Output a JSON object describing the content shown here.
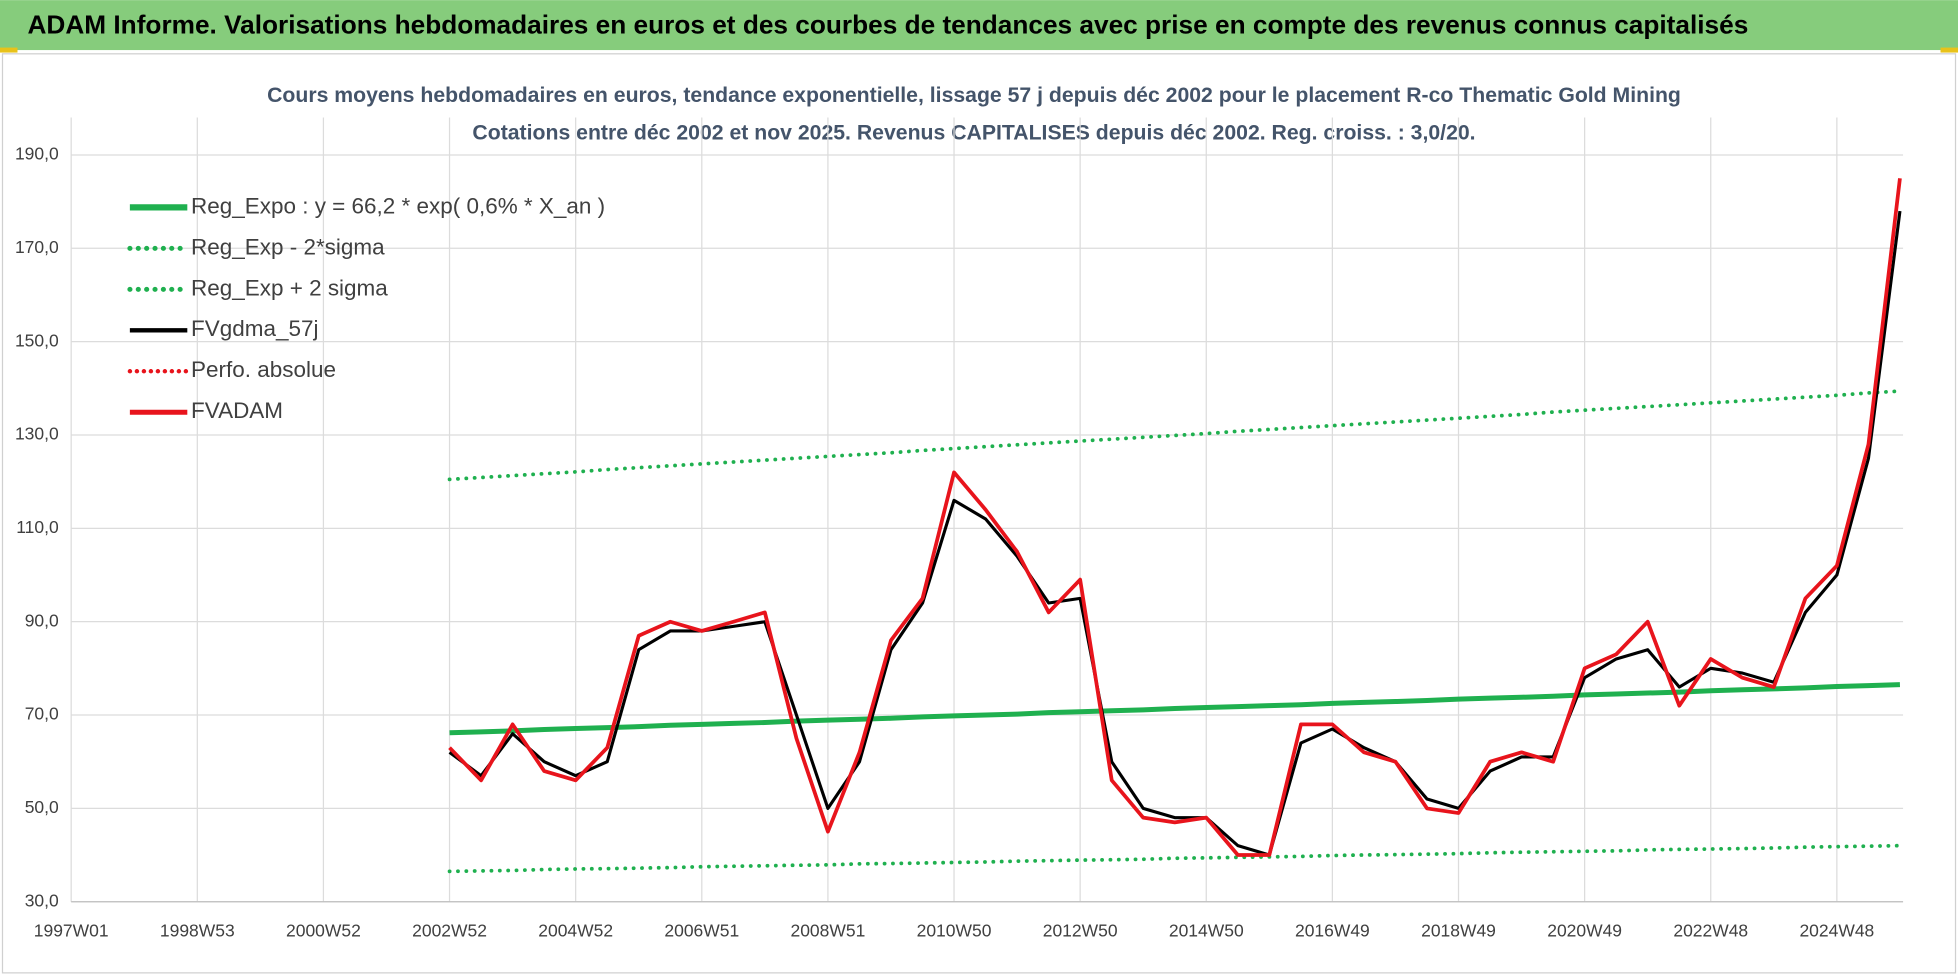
{
  "header": {
    "title": "ADAM Informe. Valorisations hebdomadaires en euros et des courbes de tendances avec prise en compte des revenus connus capitalisés"
  },
  "chart_data": {
    "type": "line",
    "title": "Cours moyens hebdomadaires en euros, tendance exponentielle, lissage 57 j depuis déc 2002 pour le placement R-co Thematic Gold Mining",
    "subtitle": "Cotations entre déc 2002 et nov 2025. Revenus CAPITALISES depuis déc 2002. Reg. croiss. : 3,0/20.",
    "categories": [
      "1997W01",
      null,
      null,
      null,
      "1998W53",
      null,
      null,
      null,
      "2000W52",
      null,
      null,
      null,
      "2002W52",
      null,
      null,
      null,
      "2004W52",
      null,
      null,
      null,
      "2006W51",
      null,
      null,
      null,
      "2008W51",
      null,
      null,
      null,
      "2010W50",
      null,
      null,
      null,
      "2012W50",
      null,
      null,
      null,
      "2014W50",
      null,
      null,
      null,
      "2016W49",
      null,
      null,
      null,
      "2018W49",
      null,
      null,
      null,
      "2020W49",
      null,
      null,
      null,
      "2022W48",
      null,
      null,
      null,
      "2024W48",
      null,
      null
    ],
    "ylim": [
      30,
      190
    ],
    "yticks": [
      {
        "value": 30,
        "label": "30,0"
      },
      {
        "value": 50,
        "label": "50,0"
      },
      {
        "value": 70,
        "label": "70,0"
      },
      {
        "value": 90,
        "label": "90,0"
      },
      {
        "value": 110,
        "label": "110,0"
      },
      {
        "value": 130,
        "label": "130,0"
      },
      {
        "value": 150,
        "label": "150,0"
      },
      {
        "value": 170,
        "label": "170,0"
      },
      {
        "value": 190,
        "label": "190,0"
      }
    ],
    "grid": true,
    "legend": "top-left",
    "series": [
      {
        "name": "Reg_Expo : y = 66,2 * exp( 0,6% *  X_an )",
        "color": "#1fb04f",
        "style": "solid",
        "width": 4,
        "values": [
          null,
          null,
          null,
          null,
          null,
          null,
          null,
          null,
          null,
          null,
          null,
          null,
          66.2,
          66.4,
          66.6,
          66.9,
          67.1,
          67.3,
          67.5,
          67.8,
          68.0,
          68.2,
          68.4,
          68.7,
          68.9,
          69.1,
          69.3,
          69.6,
          69.8,
          70.0,
          70.2,
          70.5,
          70.7,
          70.9,
          71.1,
          71.4,
          71.6,
          71.8,
          72.0,
          72.2,
          72.5,
          72.7,
          72.9,
          73.1,
          73.4,
          73.6,
          73.8,
          74.0,
          74.3,
          74.5,
          74.7,
          74.9,
          75.2,
          75.4,
          75.6,
          75.8,
          76.1,
          76.3,
          76.5
        ]
      },
      {
        "name": "Reg_Exp - 2*sigma",
        "color": "#1fb04f",
        "style": "dotted",
        "width": 3,
        "values": [
          null,
          null,
          null,
          null,
          null,
          null,
          null,
          null,
          null,
          null,
          null,
          null,
          36.5,
          36.6,
          36.7,
          36.9,
          37.0,
          37.1,
          37.2,
          37.3,
          37.5,
          37.6,
          37.7,
          37.8,
          37.9,
          38.1,
          38.2,
          38.3,
          38.4,
          38.5,
          38.7,
          38.8,
          38.9,
          39.0,
          39.1,
          39.3,
          39.4,
          39.5,
          39.6,
          39.7,
          39.9,
          40.0,
          40.1,
          40.2,
          40.3,
          40.5,
          40.6,
          40.7,
          40.8,
          40.9,
          41.1,
          41.2,
          41.3,
          41.4,
          41.5,
          41.7,
          41.8,
          41.9,
          42.0
        ]
      },
      {
        "name": "Reg_Exp + 2 sigma",
        "color": "#1fb04f",
        "style": "dotted",
        "width": 3,
        "values": [
          null,
          null,
          null,
          null,
          null,
          null,
          null,
          null,
          null,
          null,
          null,
          null,
          120.5,
          120.9,
          121.3,
          121.7,
          122.1,
          122.6,
          123.0,
          123.4,
          123.8,
          124.2,
          124.6,
          125.0,
          125.4,
          125.8,
          126.2,
          126.7,
          127.1,
          127.5,
          127.9,
          128.3,
          128.7,
          129.1,
          129.5,
          129.9,
          130.3,
          130.8,
          131.2,
          131.6,
          132.0,
          132.4,
          132.8,
          133.2,
          133.6,
          134.0,
          134.4,
          134.9,
          135.3,
          135.7,
          136.1,
          136.5,
          136.9,
          137.3,
          137.7,
          138.1,
          138.5,
          139.0,
          139.4
        ]
      },
      {
        "name": "FVgdma_57j",
        "color": "#000000",
        "style": "solid",
        "width": 2.5,
        "values": [
          null,
          null,
          null,
          null,
          null,
          null,
          null,
          null,
          null,
          null,
          null,
          null,
          62,
          57,
          66,
          60,
          57,
          60,
          84,
          88,
          88,
          89,
          90,
          70,
          50,
          60,
          84,
          94,
          116,
          112,
          104,
          94,
          95,
          60,
          50,
          48,
          48,
          42,
          40,
          64,
          67,
          63,
          60,
          52,
          50,
          58,
          61,
          61,
          78,
          82,
          84,
          76,
          80,
          79,
          77,
          92,
          100,
          125,
          178
        ]
      },
      {
        "name": "Perfo. absolue",
        "color": "#e8141c",
        "style": "dotted",
        "width": 2.5,
        "values": [
          null,
          null,
          null,
          null,
          null,
          null,
          null,
          null,
          null,
          null,
          null,
          null,
          null,
          null,
          null,
          null,
          null,
          null,
          null,
          null,
          null,
          null,
          null,
          null,
          null,
          null,
          null,
          null,
          null,
          null,
          null,
          null,
          null,
          null,
          null,
          null,
          null,
          null,
          null,
          null,
          null,
          null,
          null,
          null,
          null,
          null,
          null,
          null,
          null,
          null,
          null,
          null,
          null,
          null,
          null,
          null,
          null,
          null,
          null
        ]
      },
      {
        "name": "FVADAM",
        "color": "#e8141c",
        "style": "solid",
        "width": 3,
        "values": [
          null,
          null,
          null,
          null,
          null,
          null,
          null,
          null,
          null,
          null,
          null,
          null,
          63,
          56,
          68,
          58,
          56,
          63,
          87,
          90,
          88,
          90,
          92,
          65,
          45,
          62,
          86,
          95,
          122,
          114,
          105,
          92,
          99,
          56,
          48,
          47,
          48,
          40,
          40,
          68,
          68,
          62,
          60,
          50,
          49,
          60,
          62,
          60,
          80,
          83,
          90,
          72,
          82,
          78,
          76,
          95,
          102,
          128,
          185
        ]
      }
    ]
  }
}
